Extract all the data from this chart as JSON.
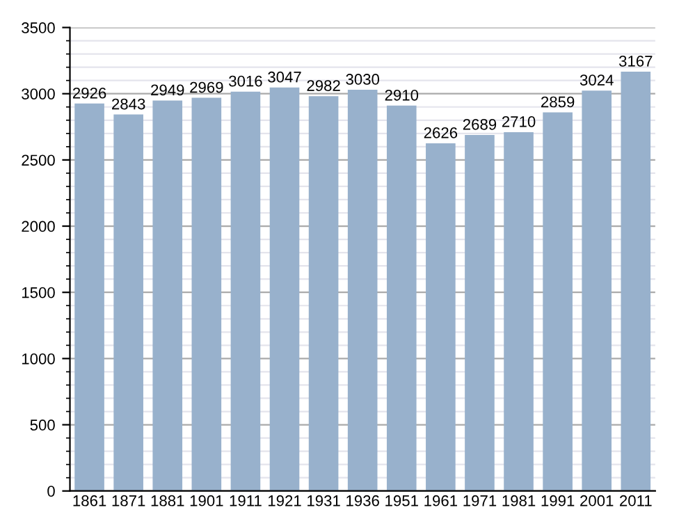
{
  "chart_data": {
    "type": "bar",
    "categories": [
      "1861",
      "1871",
      "1881",
      "1901",
      "1911",
      "1921",
      "1931",
      "1936",
      "1951",
      "1961",
      "1971",
      "1981",
      "1991",
      "2001",
      "2011"
    ],
    "values": [
      2926,
      2843,
      2949,
      2969,
      3016,
      3047,
      2982,
      3030,
      2910,
      2626,
      2689,
      2710,
      2859,
      3024,
      3167
    ],
    "color": "#98b1cc",
    "ylim": [
      0,
      3500
    ],
    "yticks": [
      0,
      500,
      1000,
      1500,
      2000,
      2500,
      3000,
      3500
    ],
    "grid": "y",
    "data_labels": true
  }
}
